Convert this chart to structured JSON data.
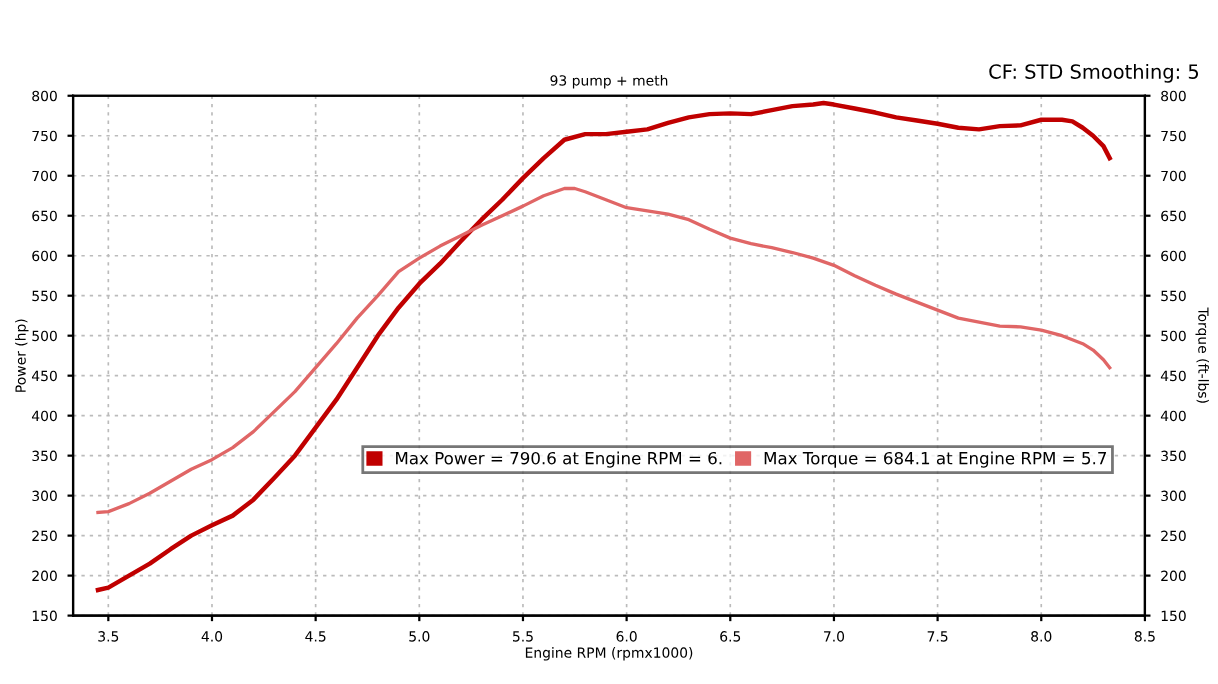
{
  "chart_data": {
    "type": "line",
    "subtitle": "93 pump + meth",
    "xlabel": "Engine RPM (rpmx1000)",
    "ylabel": "Power (hp)",
    "y2label": "Torque (ft-lbs)",
    "annotations": [
      "CF: STD Smoothing: 5"
    ],
    "xlim": [
      3.33,
      8.5
    ],
    "xticks": [
      3.5,
      {
        "value": 4,
        "label": "4.0"
      },
      4.5,
      {
        "value": 5,
        "label": "5.0"
      },
      5.5,
      {
        "value": 6,
        "label": "6.0"
      },
      6.5,
      {
        "value": 7,
        "label": "7.0"
      },
      7.5,
      {
        "value": 8,
        "label": "8.0"
      },
      8.5
    ],
    "ylim": [
      150,
      800
    ],
    "yticks": [
      150,
      200,
      250,
      300,
      350,
      400,
      450,
      500,
      550,
      600,
      650,
      700,
      750,
      800
    ],
    "y2lim": [
      150,
      800
    ],
    "y2ticks": [
      150,
      200,
      250,
      300,
      350,
      400,
      450,
      500,
      550,
      600,
      650,
      700,
      750,
      800
    ],
    "grid": true,
    "legend": "center",
    "line_style": "solid",
    "marker": "none",
    "series": [
      {
        "name": "Max Power = 790.6 at Engine RPM = 6.",
        "color": "#c00000",
        "x": [
          3.45,
          3.5,
          3.6,
          3.7,
          3.8,
          3.9,
          4.0,
          4.1,
          4.2,
          4.3,
          4.4,
          4.5,
          4.6,
          4.7,
          4.8,
          4.9,
          5.0,
          5.1,
          5.2,
          5.3,
          5.4,
          5.5,
          5.6,
          5.7,
          5.8,
          5.9,
          6.0,
          6.1,
          6.2,
          6.3,
          6.4,
          6.5,
          6.6,
          6.7,
          6.8,
          6.9,
          6.95,
          7.0,
          7.1,
          7.2,
          7.3,
          7.4,
          7.5,
          7.6,
          7.7,
          7.8,
          7.9,
          8.0,
          8.1,
          8.15,
          8.2,
          8.25,
          8.3,
          8.33
        ],
        "values": [
          182,
          185,
          200,
          215,
          233,
          250,
          263,
          275,
          295,
          322,
          350,
          385,
          420,
          460,
          500,
          535,
          565,
          590,
          618,
          645,
          670,
          697,
          722,
          745,
          752,
          752,
          755,
          758,
          766,
          773,
          777,
          778,
          777,
          782,
          787,
          789,
          791,
          789,
          784,
          779,
          773,
          769,
          765,
          760,
          758,
          762,
          763,
          770,
          770,
          768,
          760,
          750,
          737,
          722
        ]
      },
      {
        "name": "Max Torque = 684.1 at Engine RPM = 5.7",
        "color": "#e06666",
        "axis": "y2",
        "x": [
          3.45,
          3.5,
          3.6,
          3.7,
          3.8,
          3.9,
          4.0,
          4.1,
          4.2,
          4.3,
          4.4,
          4.5,
          4.6,
          4.7,
          4.8,
          4.9,
          5.0,
          5.1,
          5.2,
          5.3,
          5.4,
          5.5,
          5.6,
          5.7,
          5.75,
          5.8,
          5.9,
          6.0,
          6.1,
          6.2,
          6.3,
          6.4,
          6.5,
          6.6,
          6.7,
          6.8,
          6.9,
          7.0,
          7.1,
          7.2,
          7.3,
          7.4,
          7.5,
          7.6,
          7.7,
          7.8,
          7.9,
          8.0,
          8.1,
          8.2,
          8.25,
          8.3,
          8.33
        ],
        "values": [
          279,
          280,
          290,
          303,
          318,
          333,
          345,
          360,
          380,
          405,
          430,
          460,
          490,
          522,
          550,
          580,
          597,
          612,
          625,
          638,
          650,
          662,
          675,
          684,
          684,
          680,
          670,
          660,
          656,
          652,
          645,
          633,
          622,
          615,
          610,
          604,
          597,
          588,
          575,
          563,
          552,
          542,
          532,
          522,
          517,
          512,
          511,
          507,
          500,
          490,
          482,
          470,
          460
        ]
      }
    ]
  }
}
